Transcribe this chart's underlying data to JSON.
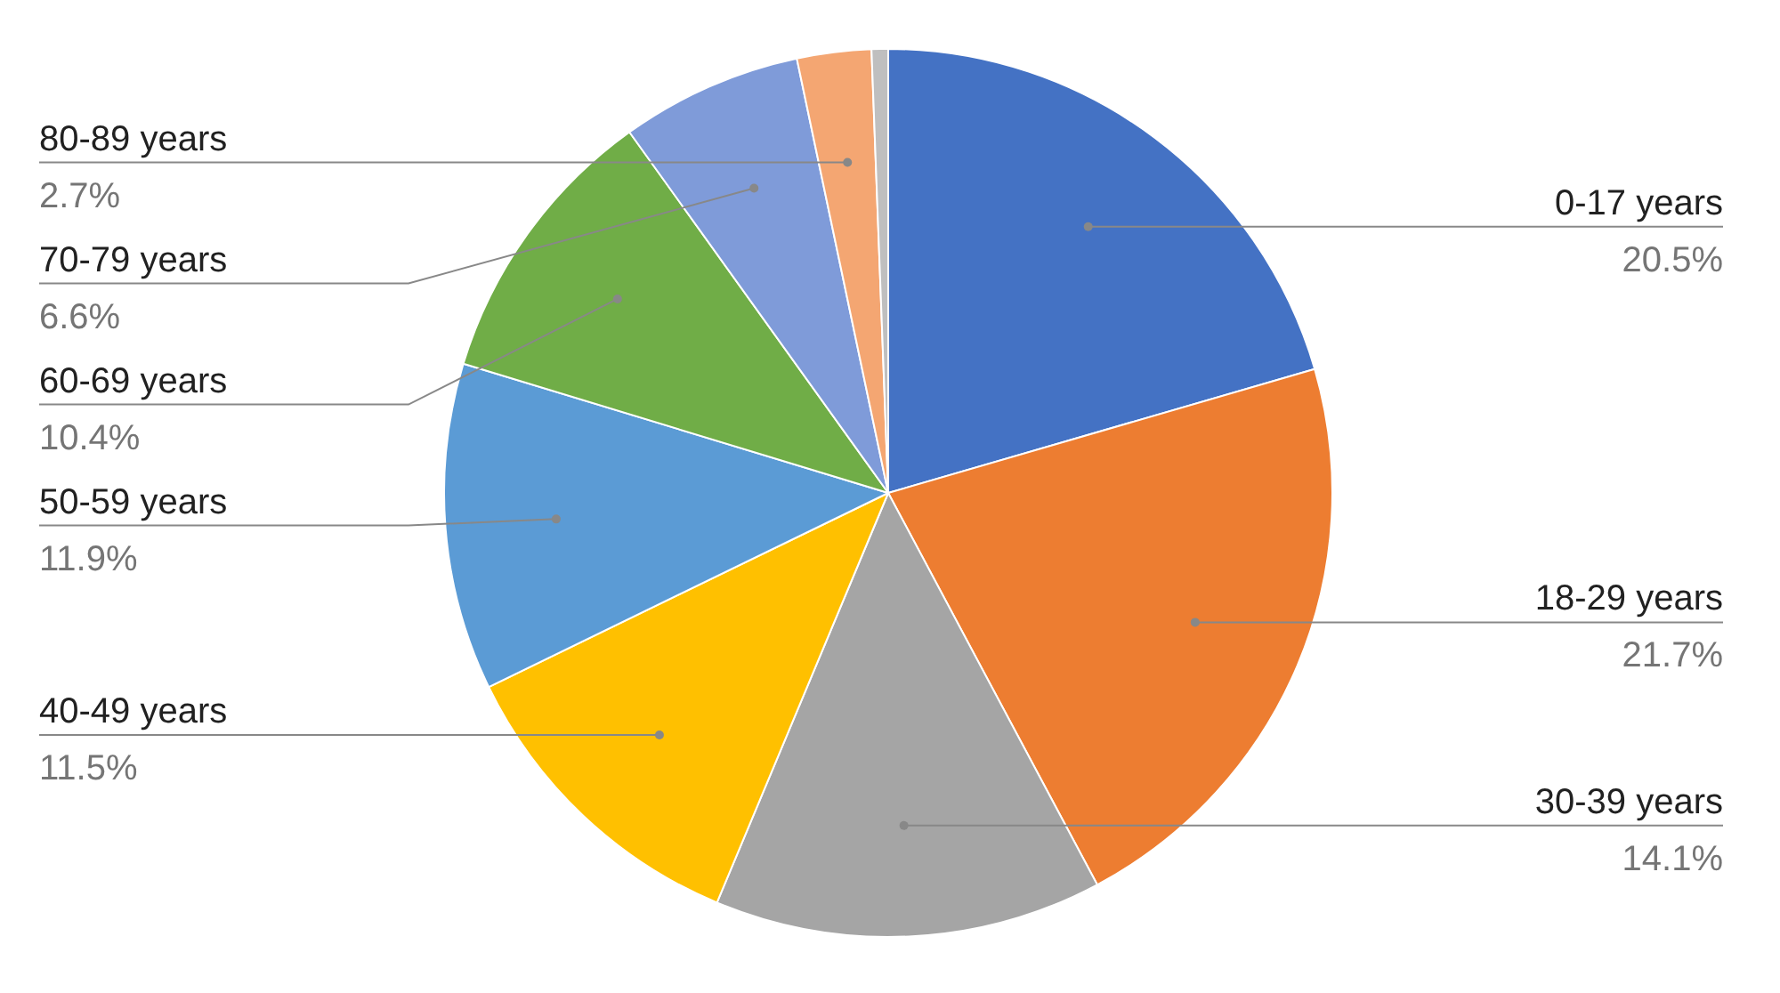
{
  "chart_data": {
    "type": "pie",
    "categories": [
      "0-17 years",
      "18-29 years",
      "30-39 years",
      "40-49 years",
      "50-59 years",
      "60-69 years",
      "70-79 years",
      "80-89 years",
      null
    ],
    "values": [
      20.5,
      21.7,
      14.1,
      11.5,
      11.9,
      10.4,
      6.6,
      2.7,
      0.6
    ],
    "value_labels": [
      "20.5%",
      "21.7%",
      "14.1%",
      "11.5%",
      "11.9%",
      "10.4%",
      "6.6%",
      "2.7%",
      null
    ],
    "colors": [
      "#4472c4",
      "#ed7d31",
      "#a5a5a5",
      "#ffc000",
      "#5b9bd5",
      "#70ad47",
      "#7f9bd9",
      "#f4a672",
      "#bfbfbf"
    ],
    "legend": false
  }
}
